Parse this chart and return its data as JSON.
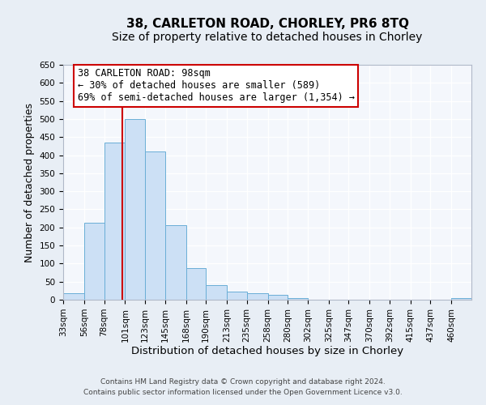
{
  "title": "38, CARLETON ROAD, CHORLEY, PR6 8TQ",
  "subtitle": "Size of property relative to detached houses in Chorley",
  "xlabel": "Distribution of detached houses by size in Chorley",
  "ylabel": "Number of detached properties",
  "footer_lines": [
    "Contains HM Land Registry data © Crown copyright and database right 2024.",
    "Contains public sector information licensed under the Open Government Licence v3.0."
  ],
  "bar_edges": [
    33,
    56,
    78,
    101,
    123,
    145,
    168,
    190,
    213,
    235,
    258,
    280,
    302,
    325,
    347,
    370,
    392,
    415,
    437,
    460,
    482
  ],
  "bar_heights": [
    18,
    213,
    435,
    500,
    410,
    207,
    87,
    40,
    22,
    19,
    13,
    4,
    0,
    0,
    0,
    0,
    0,
    0,
    0,
    4
  ],
  "bar_color": "#cce0f5",
  "bar_edge_color": "#6aaed6",
  "property_line_x": 98,
  "property_line_color": "#cc0000",
  "annotation_line1": "38 CARLETON ROAD: 98sqm",
  "annotation_line2": "← 30% of detached houses are smaller (589)",
  "annotation_line3": "69% of semi-detached houses are larger (1,354) →",
  "annotation_box_color": "#ffffff",
  "annotation_box_edge_color": "#cc0000",
  "ylim": [
    0,
    650
  ],
  "yticks": [
    0,
    50,
    100,
    150,
    200,
    250,
    300,
    350,
    400,
    450,
    500,
    550,
    600,
    650
  ],
  "background_color": "#e8eef5",
  "plot_background_color": "#f4f7fc",
  "grid_color": "#ffffff",
  "title_fontsize": 11,
  "subtitle_fontsize": 10,
  "xlabel_fontsize": 9.5,
  "ylabel_fontsize": 9,
  "tick_fontsize": 7.5,
  "annotation_fontsize": 8.5,
  "footer_fontsize": 6.5
}
